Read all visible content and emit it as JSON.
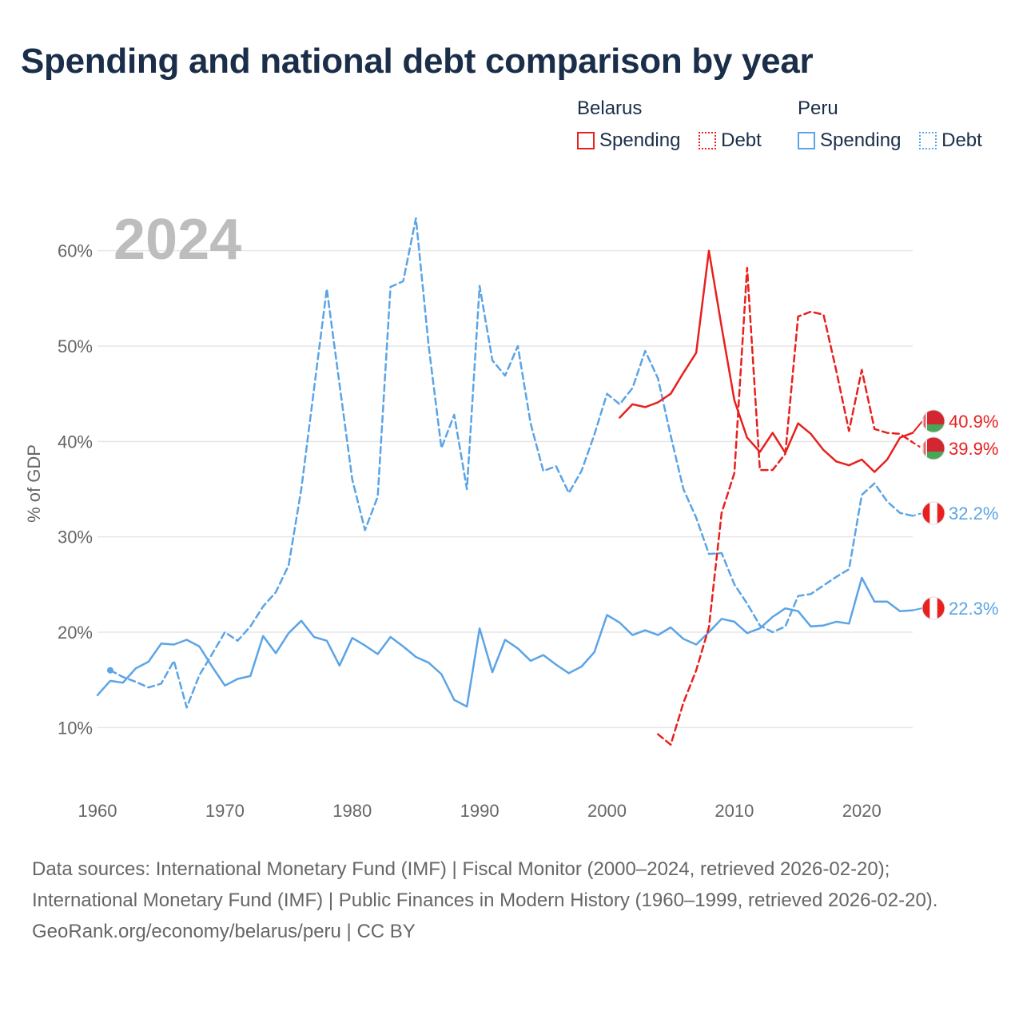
{
  "title": "Spending and national debt comparison by year",
  "legend": {
    "groups": [
      {
        "country": "Belarus",
        "color": "#e8201e",
        "items": [
          "Spending",
          "Debt"
        ]
      },
      {
        "country": "Peru",
        "color": "#5ba4e5",
        "items": [
          "Spending",
          "Debt"
        ]
      }
    ]
  },
  "chart_data": {
    "type": "line",
    "year_watermark": "2024",
    "ylabel": "% of GDP",
    "xlim": [
      1960,
      2024
    ],
    "ylim": [
      5,
      65
    ],
    "x_ticks": [
      1960,
      1970,
      1980,
      1990,
      2000,
      2010,
      2020
    ],
    "y_ticks": [
      {
        "value": 10,
        "label": "10%"
      },
      {
        "value": 20,
        "label": "20%"
      },
      {
        "value": 30,
        "label": "30%"
      },
      {
        "value": 40,
        "label": "40%"
      },
      {
        "value": 50,
        "label": "50%"
      },
      {
        "value": 60,
        "label": "60%"
      }
    ],
    "series": [
      {
        "name": "Peru Spending",
        "country": "Peru",
        "kind": "Spending",
        "color": "#5ba4e5",
        "dashed": false,
        "end_label": "22.3%",
        "x": [
          1960,
          1961,
          1962,
          1963,
          1964,
          1965,
          1966,
          1967,
          1968,
          1969,
          1970,
          1971,
          1972,
          1973,
          1974,
          1975,
          1976,
          1977,
          1978,
          1979,
          1980,
          1981,
          1982,
          1983,
          1984,
          1985,
          1986,
          1987,
          1988,
          1989,
          1990,
          1991,
          1992,
          1993,
          1994,
          1995,
          1996,
          1997,
          1998,
          1999,
          2000,
          2001,
          2002,
          2003,
          2004,
          2005,
          2006,
          2007,
          2008,
          2009,
          2010,
          2011,
          2012,
          2013,
          2014,
          2015,
          2016,
          2017,
          2018,
          2019,
          2020,
          2021,
          2022,
          2023,
          2024
        ],
        "y": [
          13.4,
          14.9,
          14.7,
          16.2,
          16.9,
          18.8,
          18.7,
          19.2,
          18.5,
          16.4,
          14.4,
          15.1,
          15.4,
          19.6,
          17.8,
          19.9,
          21.2,
          19.5,
          19.1,
          16.5,
          19.4,
          18.6,
          17.7,
          19.5,
          18.5,
          17.4,
          16.8,
          15.6,
          12.9,
          12.2,
          20.4,
          15.8,
          19.2,
          18.3,
          17.0,
          17.6,
          16.6,
          15.7,
          16.4,
          17.9,
          21.8,
          21.0,
          19.7,
          20.2,
          19.7,
          20.5,
          19.3,
          18.7,
          20.0,
          21.4,
          21.1,
          19.9,
          20.4,
          21.6,
          22.5,
          22.2,
          20.6,
          20.7,
          21.1,
          20.9,
          25.7,
          23.2,
          23.2,
          22.2,
          22.3
        ]
      },
      {
        "name": "Peru Debt",
        "country": "Peru",
        "kind": "Debt",
        "color": "#5ba4e5",
        "dashed": true,
        "end_label": "32.2%",
        "x": [
          1961,
          1962,
          1963,
          1964,
          1965,
          1966,
          1967,
          1968,
          1969,
          1970,
          1971,
          1972,
          1973,
          1974,
          1975,
          1976,
          1977,
          1978,
          1979,
          1980,
          1981,
          1982,
          1983,
          1984,
          1985,
          1986,
          1987,
          1988,
          1989,
          1990,
          1991,
          1992,
          1993,
          1994,
          1995,
          1996,
          1997,
          1998,
          1999,
          2000,
          2001,
          2002,
          2003,
          2004,
          2005,
          2006,
          2007,
          2008,
          2009,
          2010,
          2011,
          2012,
          2013,
          2014,
          2015,
          2016,
          2017,
          2018,
          2019,
          2020,
          2021,
          2022,
          2023,
          2024
        ],
        "y": [
          16.0,
          15.3,
          14.8,
          14.2,
          14.6,
          17.0,
          12.1,
          15.5,
          17.7,
          20.0,
          19.1,
          20.6,
          22.7,
          24.2,
          27.0,
          35.0,
          45.5,
          56.0,
          46.0,
          36.0,
          30.7,
          34.2,
          56.2,
          56.8,
          63.4,
          50.0,
          39.3,
          42.8,
          35.0,
          56.3,
          48.5,
          46.9,
          50.0,
          41.9,
          36.9,
          37.4,
          34.6,
          36.9,
          40.7,
          45.0,
          43.9,
          45.6,
          49.5,
          46.6,
          40.6,
          35.0,
          32.0,
          28.2,
          28.3,
          25.0,
          23.0,
          20.7,
          20.0,
          20.6,
          23.8,
          24.0,
          24.9,
          25.8,
          26.6,
          34.4,
          35.6,
          33.7,
          32.5,
          32.2
        ]
      },
      {
        "name": "Belarus Spending",
        "country": "Belarus",
        "kind": "Spending",
        "color": "#e8201e",
        "dashed": false,
        "end_label": "40.9%",
        "x": [
          2001,
          2002,
          2003,
          2004,
          2005,
          2006,
          2007,
          2008,
          2009,
          2010,
          2011,
          2012,
          2013,
          2014,
          2015,
          2016,
          2017,
          2018,
          2019,
          2020,
          2021,
          2022,
          2023,
          2024
        ],
        "y": [
          42.5,
          43.9,
          43.6,
          44.1,
          45.0,
          47.2,
          49.3,
          60.0,
          52.0,
          44.3,
          40.4,
          38.9,
          40.9,
          38.8,
          41.9,
          40.8,
          39.1,
          37.9,
          37.5,
          38.1,
          36.8,
          38.1,
          40.4,
          40.9
        ]
      },
      {
        "name": "Belarus Debt",
        "country": "Belarus",
        "kind": "Debt",
        "color": "#e8201e",
        "dashed": true,
        "end_label": "39.9%",
        "x": [
          2004,
          2005,
          2006,
          2007,
          2008,
          2009,
          2010,
          2011,
          2012,
          2013,
          2014,
          2015,
          2016,
          2017,
          2018,
          2019,
          2020,
          2021,
          2022,
          2023,
          2024
        ],
        "y": [
          9.3,
          8.2,
          12.6,
          16.0,
          20.5,
          32.5,
          36.7,
          58.2,
          37.0,
          37.0,
          38.7,
          53.1,
          53.6,
          53.3,
          47.4,
          41.1,
          47.5,
          41.3,
          40.9,
          40.8,
          39.9
        ]
      }
    ]
  },
  "footer": {
    "source_line": "Data sources: International Monetary Fund (IMF) | Fiscal Monitor (2000–2024, retrieved 2026-02-20); International Monetary Fund (IMF) | Public Finances in Modern History (1960–1999, retrieved 2026-02-20).",
    "credit_line": "GeoRank.org/economy/belarus/peru | CC BY"
  }
}
